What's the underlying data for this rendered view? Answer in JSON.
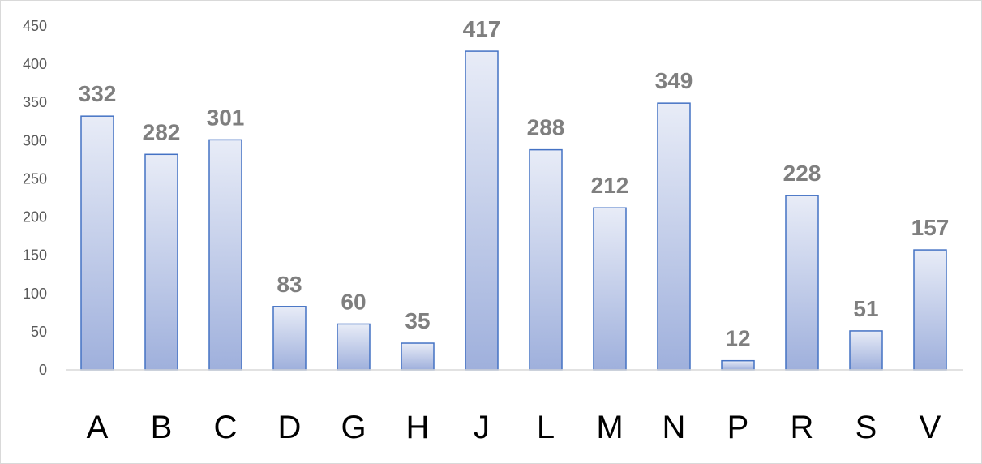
{
  "chart_data": {
    "type": "bar",
    "categories": [
      "A",
      "B",
      "C",
      "D",
      "G",
      "H",
      "J",
      "L",
      "M",
      "N",
      "P",
      "R",
      "S",
      "V"
    ],
    "values": [
      332,
      282,
      301,
      83,
      60,
      35,
      417,
      288,
      212,
      349,
      12,
      228,
      51,
      157
    ],
    "yticks": [
      "0",
      "50",
      "100",
      "150",
      "200",
      "250",
      "300",
      "350",
      "400",
      "450"
    ],
    "ylim": [
      0,
      450
    ],
    "grid": false,
    "legend": "none",
    "title": "",
    "xlabel": "",
    "ylabel": "",
    "colors": {
      "bar_top": "#e8ecf7",
      "bar_bottom": "#9fb0dc",
      "bar_stroke": "#4472c4",
      "axis": "#d9d9d9",
      "data_label": "#7f7f7f"
    }
  }
}
